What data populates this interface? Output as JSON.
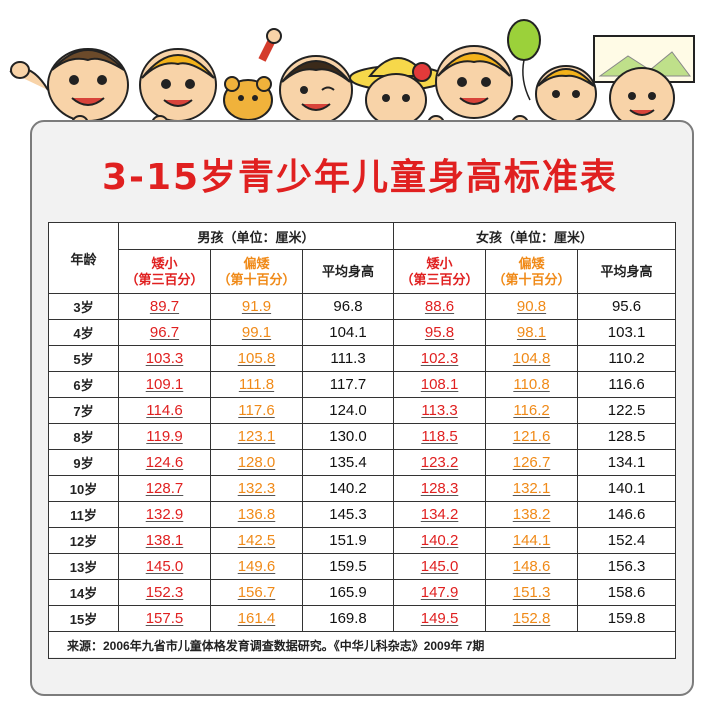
{
  "title": "3-15岁青少年儿童身高标准表",
  "headers": {
    "age": "年龄",
    "boys": "男孩（单位：厘米）",
    "girls": "女孩（单位：厘米）",
    "short": "矮小",
    "short_pct": "（第三百分）",
    "low": "偏矮",
    "low_pct": "（第十百分）",
    "avg": "平均身高"
  },
  "rows": [
    {
      "age": "3岁",
      "b_short": "89.7",
      "b_low": "91.9",
      "b_avg": "96.8",
      "g_short": "88.6",
      "g_low": "90.8",
      "g_avg": "95.6"
    },
    {
      "age": "4岁",
      "b_short": "96.7",
      "b_low": "99.1",
      "b_avg": "104.1",
      "g_short": "95.8",
      "g_low": "98.1",
      "g_avg": "103.1"
    },
    {
      "age": "5岁",
      "b_short": "103.3",
      "b_low": "105.8",
      "b_avg": "111.3",
      "g_short": "102.3",
      "g_low": "104.8",
      "g_avg": "110.2"
    },
    {
      "age": "6岁",
      "b_short": "109.1",
      "b_low": "111.8",
      "b_avg": "117.7",
      "g_short": "108.1",
      "g_low": "110.8",
      "g_avg": "116.6"
    },
    {
      "age": "7岁",
      "b_short": "114.6",
      "b_low": "117.6",
      "b_avg": "124.0",
      "g_short": "113.3",
      "g_low": "116.2",
      "g_avg": "122.5"
    },
    {
      "age": "8岁",
      "b_short": "119.9",
      "b_low": "123.1",
      "b_avg": "130.0",
      "g_short": "118.5",
      "g_low": "121.6",
      "g_avg": "128.5"
    },
    {
      "age": "9岁",
      "b_short": "124.6",
      "b_low": "128.0",
      "b_avg": "135.4",
      "g_short": "123.2",
      "g_low": "126.7",
      "g_avg": "134.1"
    },
    {
      "age": "10岁",
      "b_short": "128.7",
      "b_low": "132.3",
      "b_avg": "140.2",
      "g_short": "128.3",
      "g_low": "132.1",
      "g_avg": "140.1"
    },
    {
      "age": "11岁",
      "b_short": "132.9",
      "b_low": "136.8",
      "b_avg": "145.3",
      "g_short": "134.2",
      "g_low": "138.2",
      "g_avg": "146.6"
    },
    {
      "age": "12岁",
      "b_short": "138.1",
      "b_low": "142.5",
      "b_avg": "151.9",
      "g_short": "140.2",
      "g_low": "144.1",
      "g_avg": "152.4"
    },
    {
      "age": "13岁",
      "b_short": "145.0",
      "b_low": "149.6",
      "b_avg": "159.5",
      "g_short": "145.0",
      "g_low": "148.6",
      "g_avg": "156.3"
    },
    {
      "age": "14岁",
      "b_short": "152.3",
      "b_low": "156.7",
      "b_avg": "165.9",
      "g_short": "147.9",
      "g_low": "151.3",
      "g_avg": "158.6"
    },
    {
      "age": "15岁",
      "b_short": "157.5",
      "b_low": "161.4",
      "b_avg": "169.8",
      "g_short": "149.5",
      "g_low": "152.8",
      "g_avg": "159.8"
    }
  ],
  "source": "来源：2006年九省市儿童体格发育调查数据研究。《中华儿科杂志》2009年 7期",
  "colors": {
    "title": "#e02020",
    "short": "#e02020",
    "low": "#f08a18",
    "avg": "#111111"
  }
}
